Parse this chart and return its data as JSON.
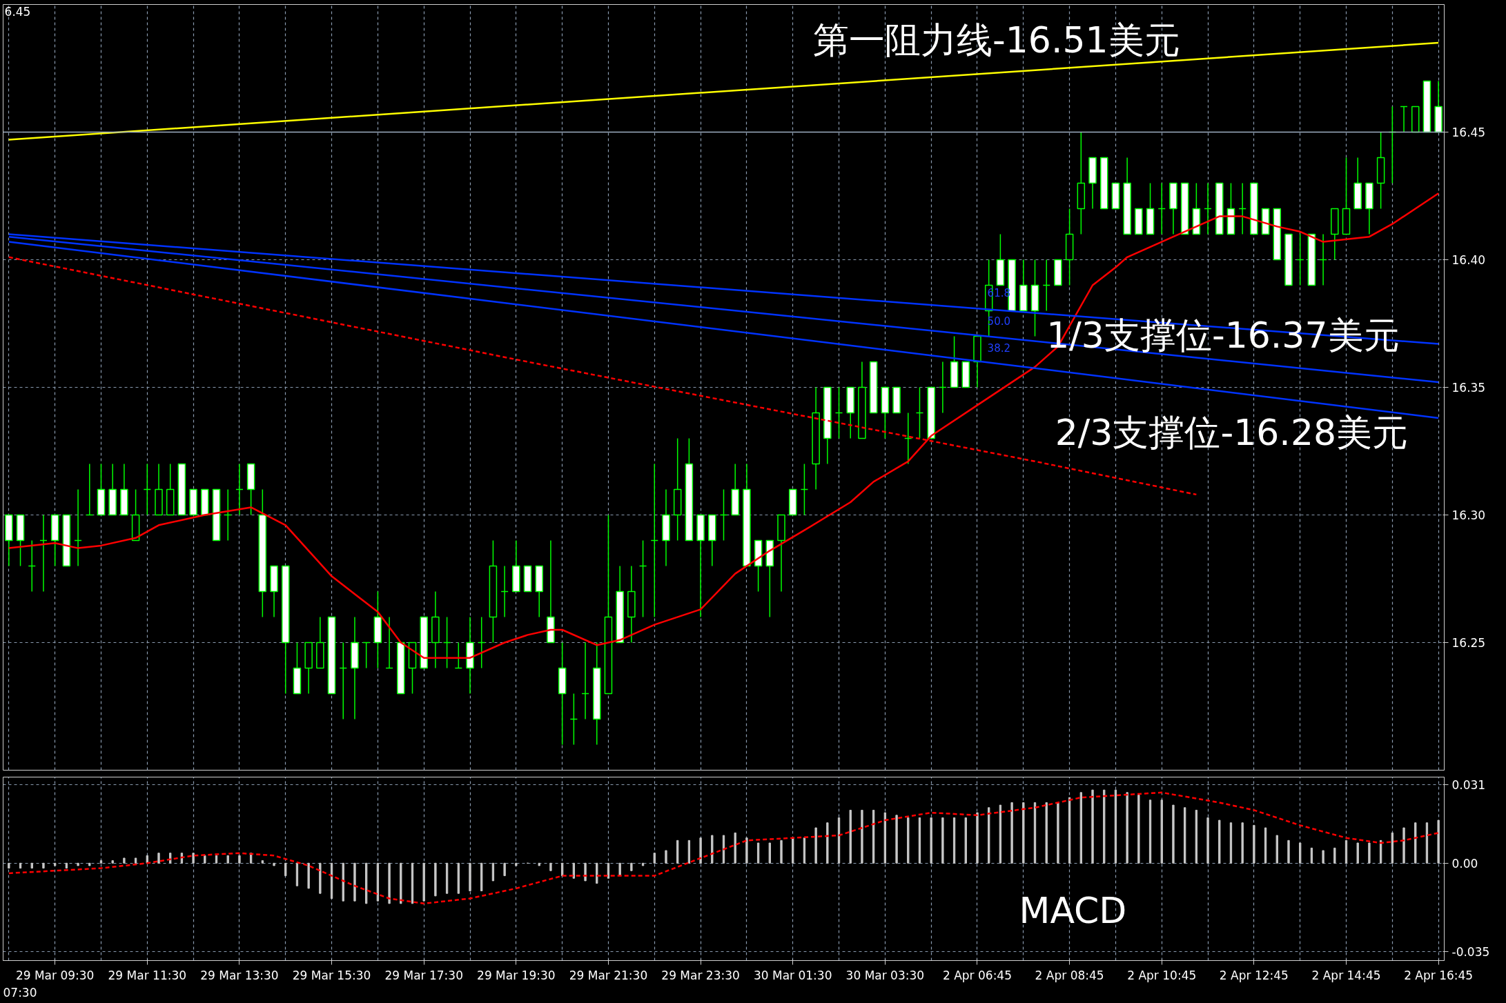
{
  "chart_data": [
    {
      "type": "candlestick",
      "categories": [
        null,
        null,
        null,
        null,
        null,
        null,
        null,
        null,
        null,
        null,
        null,
        null,
        null,
        null,
        null,
        null,
        null,
        null,
        null,
        null,
        null,
        null,
        null,
        null,
        null,
        null,
        null,
        null,
        null,
        null,
        null,
        null,
        null,
        null,
        null,
        null,
        null,
        null,
        null,
        null,
        null,
        null,
        null,
        null,
        null,
        null,
        null,
        null,
        null,
        null,
        null,
        null,
        null,
        null,
        null,
        null,
        null,
        null,
        null,
        null,
        null,
        null,
        null,
        null,
        null,
        null,
        null,
        null,
        null,
        null,
        null,
        null,
        null,
        null,
        null,
        null,
        null,
        null,
        null,
        null,
        null,
        null,
        null,
        null,
        null,
        null,
        null,
        null,
        null,
        null,
        null,
        null,
        null,
        null,
        null,
        null,
        null,
        null,
        null,
        null,
        null,
        null,
        null,
        null,
        null,
        null,
        null,
        null,
        null,
        null,
        null,
        null,
        null,
        null,
        null,
        null,
        null,
        null,
        null,
        null,
        null,
        null,
        null,
        null,
        null
      ],
      "ohlc": [
        [
          16.3,
          16.3,
          16.28,
          16.29
        ],
        [
          16.3,
          16.3,
          16.28,
          16.29
        ],
        [
          16.28,
          16.29,
          16.27,
          16.28
        ],
        [
          16.29,
          16.3,
          16.27,
          16.29
        ],
        [
          16.3,
          16.3,
          16.28,
          16.29
        ],
        [
          16.3,
          16.3,
          16.28,
          16.28
        ],
        [
          16.29,
          16.31,
          16.28,
          16.29
        ],
        [
          16.3,
          16.32,
          16.3,
          16.3
        ],
        [
          16.31,
          16.32,
          16.3,
          16.3
        ],
        [
          16.31,
          16.32,
          16.3,
          16.3
        ],
        [
          16.31,
          16.32,
          16.3,
          16.3
        ],
        [
          16.29,
          16.31,
          16.29,
          16.3
        ],
        [
          16.31,
          16.32,
          16.3,
          16.31
        ],
        [
          16.3,
          16.32,
          16.3,
          16.31
        ],
        [
          16.3,
          16.32,
          16.3,
          16.31
        ],
        [
          16.32,
          16.32,
          16.3,
          16.3
        ],
        [
          16.31,
          16.31,
          16.3,
          16.3
        ],
        [
          16.31,
          16.31,
          16.3,
          16.3
        ],
        [
          16.31,
          16.31,
          16.29,
          16.29
        ],
        [
          16.3,
          16.31,
          16.29,
          16.3
        ],
        [
          16.31,
          16.32,
          16.3,
          16.31
        ],
        [
          16.32,
          16.32,
          16.3,
          16.31
        ],
        [
          16.3,
          16.31,
          16.26,
          16.27
        ],
        [
          16.28,
          16.28,
          16.26,
          16.27
        ],
        [
          16.28,
          16.28,
          16.23,
          16.25
        ],
        [
          16.24,
          16.25,
          16.23,
          16.23
        ],
        [
          16.24,
          16.25,
          16.23,
          16.25
        ],
        [
          16.24,
          16.26,
          16.24,
          16.25
        ],
        [
          16.26,
          16.26,
          16.23,
          16.23
        ],
        [
          16.24,
          16.25,
          16.22,
          16.24
        ],
        [
          16.25,
          16.26,
          16.22,
          16.24
        ],
        [
          16.25,
          16.25,
          16.24,
          16.25
        ],
        [
          16.26,
          16.27,
          16.24,
          16.25
        ],
        [
          16.24,
          16.26,
          16.24,
          16.24
        ],
        [
          16.25,
          16.25,
          16.23,
          16.23
        ],
        [
          16.24,
          16.25,
          16.23,
          16.25
        ],
        [
          16.26,
          16.26,
          16.24,
          16.24
        ],
        [
          16.25,
          16.27,
          16.24,
          16.26
        ],
        [
          16.25,
          16.26,
          16.24,
          16.25
        ],
        [
          16.24,
          16.25,
          16.24,
          16.24
        ],
        [
          16.25,
          16.26,
          16.23,
          16.24
        ],
        [
          16.25,
          16.26,
          16.24,
          16.25
        ],
        [
          16.26,
          16.29,
          16.25,
          16.28
        ],
        [
          16.27,
          16.28,
          16.26,
          16.27
        ],
        [
          16.28,
          16.29,
          16.27,
          16.27
        ],
        [
          16.28,
          16.28,
          16.27,
          16.27
        ],
        [
          16.28,
          16.28,
          16.26,
          16.27
        ],
        [
          16.26,
          16.29,
          16.25,
          16.25
        ],
        [
          16.24,
          16.25,
          16.21,
          16.23
        ],
        [
          16.22,
          16.23,
          16.21,
          16.22
        ],
        [
          16.23,
          16.25,
          16.22,
          16.23
        ],
        [
          16.24,
          16.25,
          16.21,
          16.22
        ],
        [
          16.23,
          16.3,
          16.23,
          16.26
        ],
        [
          16.27,
          16.28,
          16.25,
          16.25
        ],
        [
          16.26,
          16.28,
          16.25,
          16.27
        ],
        [
          16.28,
          16.29,
          16.26,
          16.28
        ],
        [
          16.29,
          16.32,
          16.26,
          16.29
        ],
        [
          16.3,
          16.31,
          16.28,
          16.29
        ],
        [
          16.3,
          16.33,
          16.29,
          16.31
        ],
        [
          16.32,
          16.33,
          16.29,
          16.29
        ],
        [
          16.3,
          16.3,
          16.26,
          16.29
        ],
        [
          16.3,
          16.3,
          16.28,
          16.29
        ],
        [
          16.3,
          16.31,
          16.29,
          16.3
        ],
        [
          16.31,
          16.32,
          16.3,
          16.3
        ],
        [
          16.31,
          16.32,
          16.28,
          16.28
        ],
        [
          16.29,
          16.29,
          16.27,
          16.28
        ],
        [
          16.29,
          16.29,
          16.26,
          16.28
        ],
        [
          16.29,
          16.3,
          16.27,
          16.3
        ],
        [
          16.31,
          16.31,
          16.3,
          16.3
        ],
        [
          16.31,
          16.32,
          16.3,
          16.31
        ],
        [
          16.32,
          16.35,
          16.31,
          16.34
        ],
        [
          16.35,
          16.35,
          16.32,
          16.33
        ],
        [
          16.34,
          16.35,
          16.33,
          16.34
        ],
        [
          16.35,
          16.35,
          16.33,
          16.34
        ],
        [
          16.33,
          16.36,
          16.33,
          16.35
        ],
        [
          16.36,
          16.36,
          16.34,
          16.34
        ],
        [
          16.35,
          16.35,
          16.33,
          16.34
        ],
        [
          16.35,
          16.35,
          16.34,
          16.34
        ],
        [
          16.33,
          16.34,
          16.32,
          16.33
        ],
        [
          16.34,
          16.35,
          16.33,
          16.34
        ],
        [
          16.35,
          16.35,
          16.33,
          16.33
        ],
        [
          16.35,
          16.36,
          16.34,
          16.35
        ],
        [
          16.36,
          16.37,
          16.35,
          16.35
        ],
        [
          16.36,
          16.36,
          16.35,
          16.35
        ],
        [
          16.36,
          16.37,
          16.35,
          16.37
        ],
        [
          16.38,
          16.4,
          16.37,
          16.39
        ],
        [
          16.4,
          16.41,
          16.39,
          16.39
        ],
        [
          16.4,
          16.4,
          16.38,
          16.38
        ],
        [
          16.39,
          16.4,
          16.38,
          16.38
        ],
        [
          16.39,
          16.4,
          16.37,
          16.38
        ],
        [
          16.39,
          16.4,
          16.38,
          16.39
        ],
        [
          16.4,
          16.4,
          16.39,
          16.39
        ],
        [
          16.4,
          16.42,
          16.39,
          16.41
        ],
        [
          16.42,
          16.45,
          16.41,
          16.43
        ],
        [
          16.44,
          16.44,
          16.42,
          16.43
        ],
        [
          16.44,
          16.44,
          16.42,
          16.42
        ],
        [
          16.43,
          16.43,
          16.42,
          16.42
        ],
        [
          16.43,
          16.44,
          16.41,
          16.41
        ],
        [
          16.42,
          16.42,
          16.41,
          16.41
        ],
        [
          16.42,
          16.43,
          16.41,
          16.41
        ],
        [
          16.42,
          16.43,
          16.41,
          16.42
        ],
        [
          16.43,
          16.43,
          16.41,
          16.42
        ],
        [
          16.43,
          16.43,
          16.41,
          16.41
        ],
        [
          16.42,
          16.43,
          16.41,
          16.41
        ],
        [
          16.42,
          16.43,
          16.41,
          16.42
        ],
        [
          16.43,
          16.43,
          16.41,
          16.41
        ],
        [
          16.42,
          16.43,
          16.41,
          16.41
        ],
        [
          16.42,
          16.43,
          16.41,
          16.42
        ],
        [
          16.43,
          16.43,
          16.41,
          16.41
        ],
        [
          16.42,
          16.42,
          16.41,
          16.41
        ],
        [
          16.42,
          16.42,
          16.4,
          16.4
        ],
        [
          16.41,
          16.41,
          16.39,
          16.39
        ],
        [
          16.4,
          16.41,
          16.39,
          16.4
        ],
        [
          16.41,
          16.41,
          16.39,
          16.39
        ],
        [
          16.4,
          16.41,
          16.39,
          16.4
        ],
        [
          16.41,
          16.42,
          16.4,
          16.42
        ],
        [
          16.41,
          16.44,
          16.41,
          16.42
        ],
        [
          16.43,
          16.44,
          16.42,
          16.42
        ],
        [
          16.43,
          16.43,
          16.41,
          16.42
        ],
        [
          16.43,
          16.45,
          16.42,
          16.44
        ],
        [
          16.45,
          16.46,
          16.43,
          16.45
        ],
        [
          16.46,
          16.46,
          16.45,
          16.46
        ],
        [
          16.45,
          16.46,
          16.45,
          16.46
        ],
        [
          16.47,
          16.47,
          16.45,
          16.45
        ],
        [
          16.46,
          16.47,
          16.45,
          16.45
        ]
      ],
      "series": [
        {
          "type": "line",
          "color": "#ff0000",
          "line_style": "solid",
          "values": [
            16.287,
            null,
            null,
            null,
            16.289,
            null,
            16.287,
            null,
            16.288,
            null,
            null,
            16.291,
            null,
            16.296,
            null,
            null,
            null,
            16.3,
            null,
            null,
            null,
            16.303,
            null,
            null,
            16.296,
            null,
            null,
            null,
            16.276,
            null,
            null,
            null,
            16.262,
            null,
            16.25,
            null,
            16.244,
            null,
            null,
            null,
            16.244,
            null,
            null,
            16.25,
            null,
            16.253,
            null,
            16.255,
            16.255,
            null,
            null,
            16.249,
            null,
            16.251,
            null,
            null,
            16.257,
            null,
            null,
            null,
            16.263,
            null,
            null,
            16.277,
            null,
            null,
            16.286,
            null,
            null,
            16.294,
            null,
            null,
            null,
            16.305,
            null,
            16.313,
            null,
            null,
            16.321,
            null,
            16.331,
            null,
            null,
            null,
            16.343,
            null,
            null,
            null,
            null,
            16.358,
            null,
            16.366,
            16.374,
            null,
            16.39,
            null,
            16.397,
            16.401,
            null,
            null,
            null,
            16.409,
            null,
            null,
            null,
            16.417,
            null,
            16.417,
            null,
            null,
            16.413,
            null,
            16.411,
            null,
            16.407,
            null,
            null,
            null,
            16.409,
            null,
            16.414,
            null,
            null,
            null,
            16.426
          ]
        },
        {
          "type": "line",
          "color": "#ff0000",
          "line_style": "dashed",
          "values": [
            16.401,
            null,
            null,
            null,
            null,
            null,
            null,
            null,
            null,
            null,
            null,
            null,
            null,
            null,
            null,
            null,
            null,
            null,
            null,
            null,
            null,
            null,
            null,
            null,
            null,
            null,
            null,
            null,
            null,
            null,
            null,
            null,
            null,
            null,
            null,
            null,
            null,
            null,
            null,
            null,
            null,
            null,
            null,
            null,
            null,
            16.36,
            null,
            null,
            null,
            null,
            null,
            null,
            null,
            null,
            null,
            null,
            null,
            null,
            null,
            null,
            null,
            null,
            null,
            null,
            null,
            null,
            null,
            null,
            null,
            null,
            null,
            null,
            null,
            null,
            null,
            null,
            null,
            null,
            null,
            null,
            null,
            null,
            null,
            null,
            null,
            null,
            null,
            null,
            null,
            16.321,
            null,
            null,
            null,
            null,
            null,
            null,
            null,
            null,
            null,
            null,
            null,
            null,
            null,
            16.308,
            null,
            null,
            null,
            null,
            null,
            null,
            null,
            null,
            null,
            null,
            null,
            null,
            null,
            null,
            null,
            null,
            null,
            null,
            null,
            null,
            null
          ]
        },
        {
          "type": "line",
          "color": "#0033ff",
          "line_style": "solid",
          "values": [
            16.41,
            null,
            null,
            null,
            null,
            null,
            null,
            null,
            null,
            null,
            null,
            null,
            null,
            null,
            null,
            null,
            null,
            null,
            null,
            null,
            null,
            null,
            null,
            null,
            null,
            null,
            null,
            null,
            null,
            null,
            null,
            null,
            null,
            null,
            null,
            null,
            null,
            null,
            null,
            null,
            null,
            null,
            null,
            null,
            null,
            null,
            null,
            null,
            null,
            null,
            null,
            null,
            null,
            null,
            null,
            null,
            null,
            null,
            null,
            null,
            null,
            null,
            null,
            null,
            null,
            null,
            null,
            null,
            null,
            null,
            null,
            null,
            null,
            null,
            null,
            null,
            null,
            null,
            null,
            null,
            null,
            null,
            null,
            null,
            null,
            null,
            null,
            null,
            null,
            null,
            null,
            null,
            null,
            null,
            null,
            null,
            null,
            null,
            null,
            null,
            null,
            null,
            null,
            null,
            null,
            null,
            null,
            null,
            null,
            null,
            null,
            null,
            null,
            null,
            null,
            null,
            null,
            null,
            null,
            null,
            null,
            null,
            null,
            null,
            16.367
          ]
        },
        {
          "type": "line",
          "color": "#0033ff",
          "line_style": "solid",
          "values": [
            16.409,
            null,
            null,
            null,
            null,
            null,
            null,
            null,
            null,
            null,
            null,
            null,
            null,
            null,
            null,
            null,
            null,
            null,
            null,
            null,
            null,
            null,
            null,
            null,
            null,
            null,
            null,
            null,
            null,
            null,
            null,
            null,
            null,
            null,
            null,
            null,
            null,
            null,
            null,
            null,
            null,
            null,
            null,
            null,
            null,
            null,
            null,
            null,
            null,
            null,
            null,
            null,
            null,
            null,
            null,
            null,
            null,
            null,
            null,
            null,
            null,
            null,
            null,
            null,
            null,
            null,
            null,
            null,
            null,
            null,
            null,
            null,
            null,
            null,
            null,
            null,
            null,
            null,
            null,
            null,
            null,
            null,
            null,
            null,
            null,
            null,
            null,
            null,
            null,
            null,
            null,
            null,
            null,
            null,
            null,
            null,
            null,
            null,
            null,
            null,
            null,
            null,
            null,
            null,
            null,
            null,
            null,
            null,
            null,
            null,
            null,
            null,
            null,
            null,
            null,
            null,
            null,
            null,
            null,
            null,
            null,
            null,
            null,
            null,
            16.352
          ]
        },
        {
          "type": "line",
          "color": "#0033ff",
          "line_style": "solid",
          "values": [
            16.407,
            null,
            null,
            null,
            null,
            null,
            null,
            null,
            null,
            null,
            null,
            null,
            null,
            null,
            null,
            null,
            null,
            null,
            null,
            null,
            null,
            null,
            null,
            null,
            null,
            null,
            null,
            null,
            null,
            null,
            null,
            null,
            null,
            null,
            null,
            null,
            null,
            null,
            null,
            null,
            null,
            null,
            null,
            null,
            null,
            null,
            null,
            null,
            null,
            null,
            null,
            null,
            null,
            null,
            null,
            null,
            null,
            null,
            null,
            null,
            null,
            null,
            null,
            null,
            null,
            null,
            null,
            null,
            null,
            null,
            null,
            null,
            null,
            null,
            null,
            null,
            null,
            null,
            null,
            null,
            null,
            null,
            null,
            null,
            null,
            null,
            null,
            null,
            null,
            null,
            null,
            null,
            null,
            null,
            null,
            null,
            null,
            null,
            null,
            null,
            null,
            null,
            null,
            null,
            null,
            null,
            null,
            null,
            null,
            null,
            null,
            null,
            null,
            null,
            null,
            null,
            null,
            null,
            null,
            null,
            null,
            null,
            null,
            null,
            16.338
          ]
        },
        {
          "type": "line",
          "color": "#ffff00",
          "line_style": "solid",
          "values": [
            16.447,
            null,
            null,
            null,
            null,
            null,
            null,
            null,
            null,
            null,
            null,
            null,
            null,
            null,
            null,
            null,
            null,
            null,
            null,
            null,
            null,
            null,
            null,
            null,
            null,
            null,
            null,
            null,
            null,
            null,
            null,
            null,
            null,
            null,
            null,
            null,
            null,
            null,
            null,
            null,
            null,
            null,
            null,
            null,
            null,
            null,
            null,
            null,
            null,
            null,
            null,
            null,
            null,
            null,
            null,
            null,
            null,
            null,
            null,
            null,
            null,
            null,
            null,
            null,
            null,
            null,
            null,
            null,
            null,
            null,
            null,
            null,
            null,
            null,
            null,
            null,
            null,
            null,
            null,
            null,
            null,
            null,
            null,
            null,
            null,
            null,
            null,
            null,
            null,
            null,
            null,
            null,
            null,
            null,
            null,
            null,
            null,
            null,
            null,
            null,
            null,
            null,
            null,
            null,
            null,
            null,
            null,
            null,
            null,
            null,
            null,
            null,
            null,
            null,
            null,
            null,
            null,
            null,
            null,
            null,
            null,
            null,
            null,
            null,
            16.485
          ]
        }
      ],
      "ylim": [
        16.2,
        16.5
      ],
      "yticks": [
        {
          "value": 16.25,
          "label": "16.25"
        },
        {
          "value": 16.3,
          "label": "16.30"
        },
        {
          "value": 16.35,
          "label": "16.35"
        },
        {
          "value": 16.4,
          "label": "16.40"
        },
        {
          "value": 16.45,
          "label": "16.45"
        }
      ],
      "ref_lines": [
        {
          "axis": "y",
          "value": 16.45,
          "color": "#9fb0c4"
        }
      ],
      "grid": true,
      "tick_labels": "y",
      "annotations": [
        "6.45",
        "第一阻力线-16.51美元",
        "1/3支撑位-16.37美元",
        "2/3支撑位-16.28美元",
        "61.8",
        "50.0",
        "38.2"
      ]
    },
    {
      "type": "bar",
      "categories": [
        null,
        null,
        null,
        null,
        "29 Mar 09:30",
        null,
        null,
        null,
        null,
        null,
        null,
        null,
        "29 Mar 11:30",
        null,
        null,
        null,
        null,
        null,
        null,
        null,
        "29 Mar 13:30",
        null,
        null,
        null,
        null,
        null,
        null,
        null,
        "29 Mar 15:30",
        null,
        null,
        null,
        null,
        null,
        null,
        null,
        "29 Mar 17:30",
        null,
        null,
        null,
        null,
        null,
        null,
        null,
        "29 Mar 19:30",
        null,
        null,
        null,
        null,
        null,
        null,
        null,
        "29 Mar 21:30",
        null,
        null,
        null,
        null,
        null,
        null,
        null,
        "29 Mar 23:30",
        null,
        null,
        null,
        null,
        null,
        null,
        null,
        "30 Mar 01:30",
        null,
        null,
        null,
        null,
        null,
        null,
        null,
        "30 Mar 03:30",
        null,
        null,
        null,
        null,
        null,
        null,
        null,
        "2 Apr 06:45",
        null,
        null,
        null,
        null,
        null,
        null,
        null,
        "2 Apr 08:45",
        null,
        null,
        null,
        null,
        null,
        null,
        null,
        "2 Apr 10:45",
        null,
        null,
        null,
        null,
        null,
        null,
        null,
        "2 Apr 12:45",
        null,
        null,
        null,
        null,
        null,
        null,
        null,
        "2 Apr 14:45",
        null,
        null,
        null,
        null,
        null,
        null,
        null,
        "2 Apr 16:45"
      ],
      "series": [
        {
          "type": "bar",
          "color": "#c8c8c8",
          "values": [
            -0.002,
            -0.002,
            -0.002,
            -0.002,
            -0.001,
            -0.002,
            -0.001,
            -0.001,
            0.001,
            0.001,
            0.002,
            0.002,
            0.003,
            0.004,
            0.004,
            0.004,
            0.004,
            0.003,
            0.003,
            0.003,
            0.003,
            0.004,
            0.001,
            -0.001,
            -0.005,
            -0.009,
            -0.01,
            -0.012,
            -0.014,
            -0.015,
            -0.015,
            -0.016,
            -0.015,
            -0.016,
            -0.016,
            -0.016,
            -0.015,
            -0.013,
            -0.012,
            -0.012,
            -0.011,
            -0.011,
            -0.007,
            -0.005,
            -0.001,
            0.0,
            -0.001,
            -0.003,
            -0.005,
            -0.006,
            -0.007,
            -0.008,
            -0.006,
            -0.005,
            -0.003,
            -0.001,
            0.004,
            0.005,
            0.009,
            0.009,
            0.01,
            0.011,
            0.011,
            0.012,
            0.01,
            0.008,
            0.008,
            0.009,
            0.01,
            0.01,
            0.014,
            0.016,
            0.018,
            0.021,
            0.021,
            0.021,
            0.02,
            0.019,
            0.018,
            0.018,
            0.018,
            0.018,
            0.018,
            0.018,
            0.02,
            0.022,
            0.023,
            0.024,
            0.024,
            0.024,
            0.024,
            0.024,
            0.026,
            0.028,
            0.029,
            0.029,
            0.029,
            0.028,
            0.027,
            0.025,
            0.025,
            0.023,
            0.022,
            0.021,
            0.018,
            0.017,
            0.016,
            0.016,
            0.015,
            0.014,
            0.011,
            0.009,
            0.008,
            0.006,
            0.005,
            0.006,
            0.009,
            0.008,
            0.008,
            0.009,
            0.012,
            0.014,
            0.016,
            0.016,
            0.017
          ]
        },
        {
          "type": "line",
          "color": "#ff0000",
          "line_style": "dashed",
          "values": [
            -0.004,
            null,
            null,
            null,
            null,
            null,
            null,
            null,
            -0.002,
            null,
            null,
            null,
            0.0,
            null,
            null,
            null,
            0.003,
            null,
            null,
            null,
            0.004,
            null,
            null,
            0.003,
            null,
            null,
            -0.001,
            null,
            null,
            null,
            -0.009,
            null,
            null,
            -0.014,
            null,
            null,
            -0.016,
            null,
            null,
            null,
            -0.014,
            null,
            null,
            null,
            -0.01,
            null,
            null,
            null,
            -0.005,
            null,
            null,
            null,
            -0.005,
            null,
            null,
            null,
            -0.005,
            null,
            null,
            null,
            0.002,
            null,
            null,
            null,
            0.009,
            null,
            null,
            null,
            0.01,
            null,
            null,
            null,
            0.011,
            null,
            null,
            null,
            0.017,
            null,
            null,
            null,
            0.02,
            null,
            null,
            null,
            0.019,
            null,
            null,
            null,
            null,
            0.022,
            null,
            null,
            null,
            0.026,
            null,
            null,
            null,
            null,
            null,
            null,
            0.028,
            null,
            null,
            null,
            null,
            0.024,
            null,
            null,
            0.021,
            null,
            null,
            null,
            0.015,
            null,
            null,
            null,
            0.01,
            null,
            null,
            0.008,
            null,
            0.009,
            null,
            null,
            0.012
          ]
        }
      ],
      "ylim": [
        -0.0386,
        0.0341
      ],
      "yticks": [
        {
          "value": 0.031,
          "label": "0.031"
        },
        {
          "value": 0,
          "label": "0.00"
        },
        {
          "value": -0.035,
          "label": "-0.035"
        }
      ],
      "grid": true,
      "annotations": [
        "07:30",
        "MACD"
      ]
    }
  ]
}
